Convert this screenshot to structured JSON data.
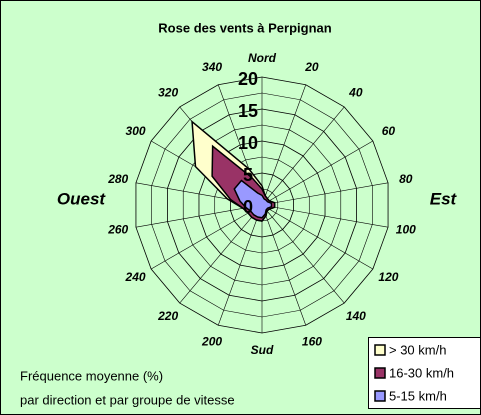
{
  "chart_data": {
    "type": "radar",
    "title": "Rose des vents à Perpignan",
    "categories": [
      "Nord",
      "20",
      "40",
      "60",
      "80",
      "100",
      "120",
      "140",
      "160",
      "Sud",
      "200",
      "220",
      "240",
      "260",
      "280",
      "300",
      "320",
      "340"
    ],
    "series": [
      {
        "name": "5-15 km/h",
        "color": "#9999ff",
        "values": [
          1.5,
          1,
          1,
          1,
          1.5,
          1.5,
          1,
          1,
          1.5,
          2,
          2,
          2,
          2,
          2.5,
          3.5,
          5,
          5,
          2
        ]
      },
      {
        "name": "16-30 km/h",
        "color": "#993366",
        "values": [
          1,
          0.5,
          0.3,
          0.3,
          0.5,
          0.5,
          0.3,
          0.2,
          0.3,
          0.5,
          0.5,
          0.5,
          0.5,
          0.5,
          1.5,
          4,
          7,
          2.5
        ]
      },
      {
        "name": "> 30 km/h",
        "color": "#ffffcc",
        "values": [
          0.5,
          0,
          0,
          0,
          0,
          0,
          0,
          0,
          0,
          0,
          0,
          0,
          0,
          0,
          0.5,
          3,
          5,
          1.5
        ]
      }
    ],
    "stacked": true,
    "ylim": [
      0,
      20
    ],
    "yticks": [
      0,
      5,
      10,
      15,
      20
    ],
    "minor_yticks": [
      2.5,
      7.5,
      12.5,
      17.5
    ],
    "grid": true,
    "legend": "bottom-right",
    "annotations": [
      "Est",
      "Ouest"
    ],
    "notes": [
      "Fréquence moyenne (%)",
      "par direction et  par groupe de vitesse"
    ]
  }
}
